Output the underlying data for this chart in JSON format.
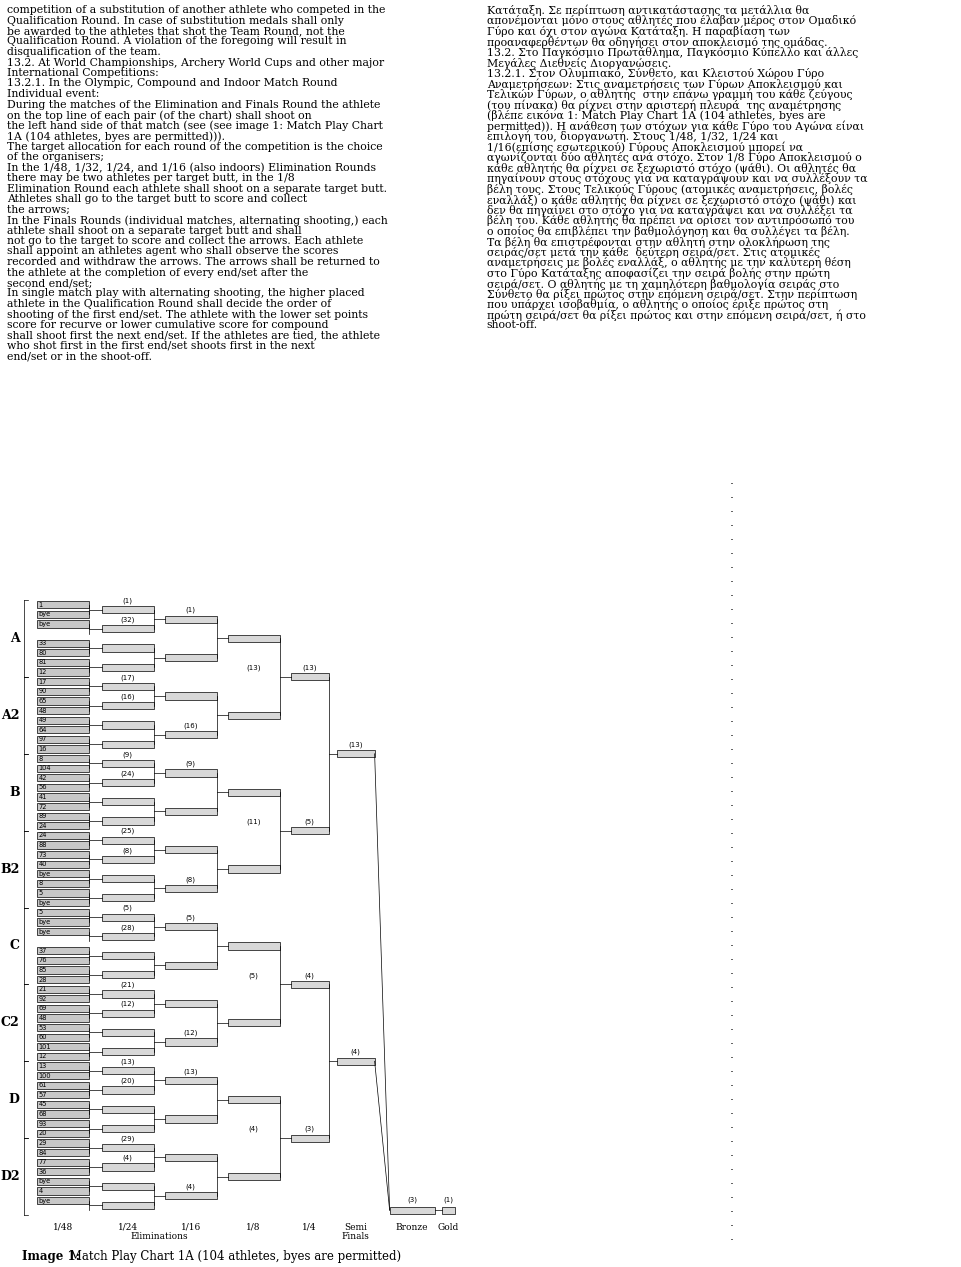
{
  "left_text_lines": [
    "competition of a substitution of another athlete who competed in the",
    "Qualification Round. In case of substitution medals shall only",
    "be awarded to the athletes that shot the Team Round, not the",
    "Qualification Round. A violation of the foregoing will result in",
    "disqualification of the team.",
    "13.2. At World Championships, Archery World Cups and other major",
    "International Competitions:",
    "13.2.1. In the Olympic, Compound and Indoor Match Round",
    "Individual event:",
    "During the matches of the Elimination and Finals Round the athlete",
    "on the top line of each pair (of the chart) shall shoot on",
    "the left hand side of that match (see (see image 1: Match Play Chart",
    "1A (104 athletes, byes are permitted))).",
    "The target allocation for each round of the competition is the choice",
    "of the organisers;",
    "In the 1/48, 1/32, 1/24, and 1/16 (also indoors) Elimination Rounds",
    "there may be two athletes per target butt, in the 1/8",
    "Elimination Round each athlete shall shoot on a separate target butt.",
    "Athletes shall go to the target butt to score and collect",
    "the arrows;",
    "In the Finals Rounds (individual matches, alternating shooting,) each",
    "athlete shall shoot on a separate target butt and shall",
    "not go to the target to score and collect the arrows. Each athlete",
    "shall appoint an athletes agent who shall observe the scores",
    "recorded and withdraw the arrows. The arrows shall be returned to",
    "the athlete at the completion of every end/set after the",
    "second end/set;",
    "In single match play with alternating shooting, the higher placed",
    "athlete in the Qualification Round shall decide the order of",
    "shooting of the first end/set. The athlete with the lower set points",
    "score for recurve or lower cumulative score for compound",
    "shall shoot first the next end/set. If the athletes are tied, the athlete",
    "who shot first in the first end/set shoots first in the next",
    "end/set or in the shoot-off."
  ],
  "right_text_lines": [
    "Κατάταξη. Σε περίπτωση αντικατάστασης τα μετάλλια θα",
    "απονέμονται μόνο στους αθλητές που έλαβαν μέρος στον Ομαδικό",
    "Γύρο και όχι στον αγώνα Κατάταξη. Η παραβίαση των",
    "προαναφερθέντων θα οδηγήσει στον αποκλεισμό της ομάδας.",
    "13.2. Στο Παγκόσμιο Πρωτάθλημα, Παγκόσμιο Κύπελλο και άλλες",
    "Μεγάλες Διεθνείς Διοργανώσεις.",
    "13.2.1. Στον Ολυμπιακό, Σύνθετο, και Κλειστού Χώρου Γύρο",
    "Αναμετρήσεων: Στις αναμετρήσεις των Γύρων Αποκλεισμού και",
    "Τελικών Γύρων, ο αθλητής  στην επάνω γραμμή του κάθε ζεύγους",
    "(του πίνακα) θα ρίχνει στην αριστερή πλευρά  της αναμέτρησης",
    "(βλέπε εικόνα 1: Match Play Chart 1A (104 athletes, byes are",
    "permitted)). Η ανάθεση των στόχων για κάθε Γύρο του Αγώνα είναι",
    "επιλογή του, διοργανωτή. Στους 1/48, 1/32, 1/24 και",
    "1/16(επίσης εσωτερικού) Γύρους Αποκλεισμού μπορεί να",
    "αγωνίζονται δύο αθλητές ανά στόχο. Στον 1/8 Γύρο Αποκλεισμού ο",
    "κάθε αθλητής θα ρίχνει σε ξεχωριστό στόχο (ψάθι). Οι αθλητές θα",
    "πηγαίνουν στους στόχους για να καταγράψουν και να συλλέξουν τα",
    "βέλη τους. Στους Τελικούς Γύρους (ατομικές αναμετρήσεις, βολές",
    "εναλλάξ) ο κάθε αθλητής θα ρίχνει σε ξεχωριστό στόχο (ψάθι) και",
    "δεν θα πηγαίνει στο στόχο για να καταγράψει και να συλλέξει τα",
    "βέλη του. Κάθε αθλητής θα πρέπει να ορίσει τον αντιπρόσωπό του",
    "ο οποίος θα επιβλέπει την βαθμολόγηση και θα συλλέγει τα βέλη.",
    "Τα βέλη θα επιστρέφονται στην αθλητή στην ολοκλήρωση της",
    "σειράς/σετ μετά την κάθε  δεύτερη σειρά/σετ. Στις ατομικές",
    "αναμετρήσεις με βολές εναλλάξ, ο αθλητής με την καλύτερη θέση",
    "στο Γύρο Κατάταξης αποφασίζει την σειρά βολής στην πρώτη",
    "σειρά/σετ. Ο αθλητής με τη χαμηλότερη βαθμολογία σειράς στο",
    "Σύνθετο θα ρίξει πρώτος στην επόμενη σειρά/σετ. Στην περίπτωση",
    "που υπάρχει ισοβαθμία, ο αθλητής ο οποίος έριξε πρώτος στη",
    "πρώτη σειρά/σετ θα ρίξει πρώτος και στην επόμενη σειρά/σετ, ή στο",
    "shoot-off."
  ],
  "caption_bold": "Image 1:",
  "caption_rest": " Match Play Chart 1A (104 athletes, byes are permitted)",
  "section_labels": [
    "A",
    "A2",
    "B",
    "B2",
    "C",
    "C2",
    "D",
    "D2"
  ],
  "col_labels_top": [
    "1/48",
    "1/24",
    "1/16",
    "1/8",
    "1/4",
    "Semi",
    "Bronze",
    "Gold"
  ],
  "col_labels_bot": [
    "",
    "Eliminations",
    "",
    "",
    "",
    "Finals",
    "",
    ""
  ],
  "athletes_48": {
    "A": [
      [
        "1",
        "bye"
      ],
      [
        "bye",
        ""
      ],
      [
        "33",
        "80"
      ],
      [
        "81",
        "12"
      ]
    ],
    "A2": [
      [
        "17",
        "90"
      ],
      [
        "65",
        "48"
      ],
      [
        "49",
        "64"
      ],
      [
        "97",
        "16"
      ]
    ],
    "B": [
      [
        "8",
        "104"
      ],
      [
        "42",
        "56"
      ],
      [
        "41",
        "72"
      ],
      [
        "89",
        "24"
      ]
    ],
    "B2": [
      [
        "24",
        "88"
      ],
      [
        "73",
        "40"
      ],
      [
        "bye",
        "8"
      ],
      [
        "5",
        "bye"
      ]
    ],
    "C": [
      [
        "5",
        "bye"
      ],
      [
        "bye",
        ""
      ],
      [
        "37",
        "76"
      ],
      [
        "85",
        "28"
      ]
    ],
    "C2": [
      [
        "21",
        "92"
      ],
      [
        "69",
        "48"
      ],
      [
        "53",
        "60"
      ],
      [
        "101",
        "12"
      ]
    ],
    "D": [
      [
        "13",
        "100"
      ],
      [
        "61",
        "57"
      ],
      [
        "45",
        "68"
      ],
      [
        "93",
        "20"
      ]
    ],
    "D2": [
      [
        "29",
        "84"
      ],
      [
        "77",
        "36"
      ],
      [
        "bye",
        "4"
      ],
      [
        "bye",
        ""
      ]
    ]
  },
  "match_labels": {
    "r24": {
      "A": [
        "(1)",
        "(32)"
      ],
      "A2": [
        "(17)",
        "(16)"
      ],
      "B": [
        "(9)",
        "(24)"
      ],
      "B2": [
        "(25)",
        "(8)"
      ],
      "C": [
        "(5)",
        "(28)"
      ],
      "C2": [
        "(21)",
        "(12)"
      ],
      "D": [
        "(13)",
        "(20)"
      ],
      "D2": [
        "(29)",
        "(4)"
      ]
    },
    "r16": {
      "A": [
        "(1)",
        ""
      ],
      "A2": [
        "",
        "(16)"
      ],
      "B": [
        "(9)",
        ""
      ],
      "B2": [
        "",
        "(8)"
      ],
      "C": [
        "(5)",
        ""
      ],
      "C2": [
        "",
        "(12)"
      ],
      "D": [
        "(13)",
        ""
      ],
      "D2": [
        "",
        "(4)"
      ]
    },
    "r8": [
      "(13)",
      "(11)",
      "(5)",
      "(4)"
    ],
    "r4": [
      "(13)",
      "(5)",
      "(4)",
      "(3)"
    ],
    "rsf": [
      "(13)",
      "(4)"
    ],
    "rbr": "(3)",
    "rgold": "(1)"
  }
}
